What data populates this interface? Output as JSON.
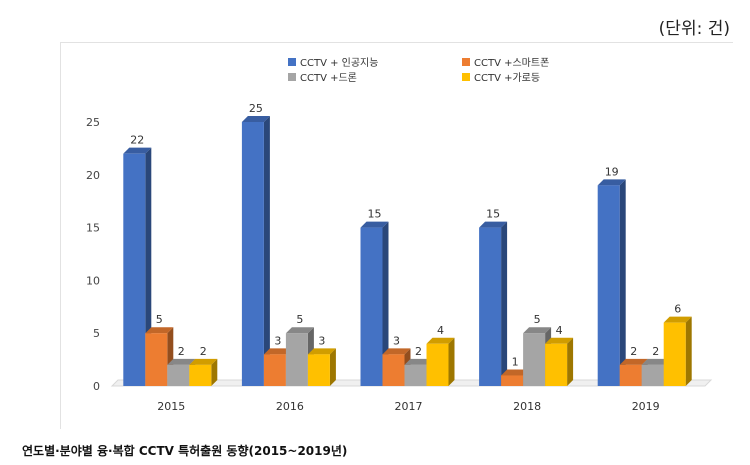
{
  "unit_label": "(단위: 건)",
  "caption": "연도별·분야별 융·복합 CCTV 특허출원 동향(2015~2019년)",
  "chart_data": {
    "type": "bar",
    "categories": [
      "2015",
      "2016",
      "2017",
      "2018",
      "2019"
    ],
    "series": [
      {
        "name": "CCTV + 인공지능",
        "values": [
          22,
          25,
          15,
          15,
          19
        ],
        "color": "#4472C4"
      },
      {
        "name": "CCTV +스마트폰",
        "values": [
          5,
          3,
          3,
          1,
          2
        ],
        "color": "#ED7D31"
      },
      {
        "name": "CCTV +드론",
        "values": [
          2,
          5,
          2,
          5,
          2
        ],
        "color": "#A5A5A5"
      },
      {
        "name": "CCTV +가로등",
        "values": [
          2,
          3,
          4,
          4,
          6
        ],
        "color": "#FFC000"
      }
    ],
    "yticks": [
      0,
      5,
      10,
      15,
      20,
      25
    ],
    "ylim": [
      0,
      27
    ],
    "xlabel": "",
    "ylabel": "",
    "title": "",
    "legend_position": "top",
    "grid": false
  }
}
